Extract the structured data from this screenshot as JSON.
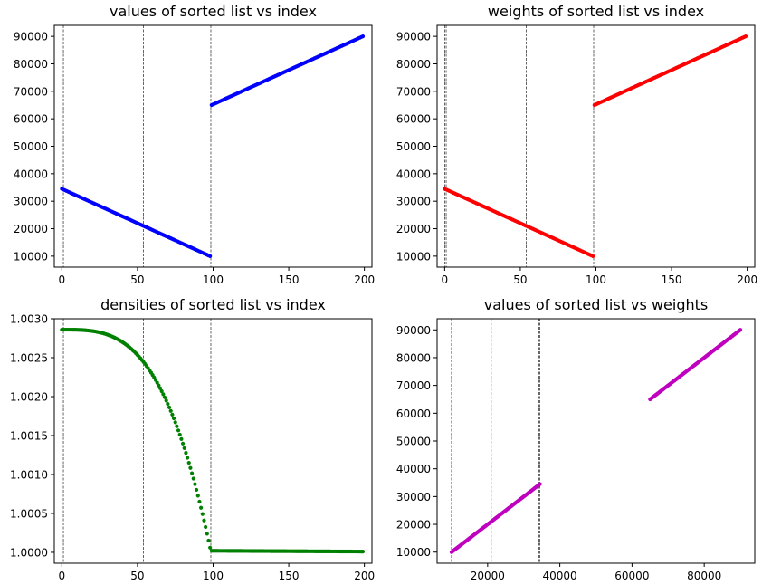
{
  "chart_data": [
    {
      "type": "scatter",
      "title": "values of sorted list vs index",
      "xlabel": "",
      "ylabel": "",
      "xlim": [
        -5,
        205
      ],
      "ylim": [
        6000,
        94000
      ],
      "xticks": [
        0,
        50,
        100,
        150,
        200
      ],
      "yticks": [
        10000,
        20000,
        30000,
        40000,
        50000,
        60000,
        70000,
        80000,
        90000
      ],
      "color": "#0000ff",
      "vlines": [
        0,
        1,
        54,
        98.5
      ],
      "segments": [
        {
          "x_start": 0,
          "x_end": 98,
          "y_start": 34500,
          "y_end": 10000,
          "n": 99,
          "shape": "linear"
        },
        {
          "x_start": 99,
          "x_end": 199,
          "y_start": 65000,
          "y_end": 90000,
          "n": 101,
          "shape": "linear"
        }
      ]
    },
    {
      "type": "scatter",
      "title": "weights of sorted list vs index",
      "xlabel": "",
      "ylabel": "",
      "xlim": [
        -5,
        205
      ],
      "ylim": [
        6000,
        94000
      ],
      "xticks": [
        0,
        50,
        100,
        150,
        200
      ],
      "yticks": [
        10000,
        20000,
        30000,
        40000,
        50000,
        60000,
        70000,
        80000,
        90000
      ],
      "color": "#ff0000",
      "vlines": [
        0,
        1,
        54,
        98.5
      ],
      "segments": [
        {
          "x_start": 0,
          "x_end": 98,
          "y_start": 34500,
          "y_end": 10000,
          "n": 99,
          "shape": "linear"
        },
        {
          "x_start": 99,
          "x_end": 199,
          "y_start": 65000,
          "y_end": 90000,
          "n": 101,
          "shape": "linear"
        }
      ]
    },
    {
      "type": "scatter",
      "title": "densities of sorted list vs index",
      "xlabel": "",
      "ylabel": "",
      "xlim": [
        -5,
        205
      ],
      "ylim": [
        0.99986,
        1.003
      ],
      "xticks": [
        0,
        50,
        100,
        150,
        200
      ],
      "yticks": [
        1.0,
        1.0005,
        1.001,
        1.0015,
        1.002,
        1.0025,
        1.003
      ],
      "ytick_labels": [
        "1.0000",
        "1.0005",
        "1.0010",
        "1.0015",
        "1.0020",
        "1.0025",
        "1.0030"
      ],
      "color": "#008000",
      "vlines": [
        0,
        1,
        54,
        98.5
      ],
      "segments": [
        {
          "x_start": 0,
          "x_end": 98,
          "y_start": 1.00286,
          "y_end": 1.00006,
          "n": 99,
          "shape": "concave"
        },
        {
          "x_start": 99,
          "x_end": 199,
          "y_start": 1.00002,
          "y_end": 1.00001,
          "n": 101,
          "shape": "linear"
        }
      ]
    },
    {
      "type": "scatter",
      "title": "values of sorted list vs weights",
      "xlabel": "",
      "ylabel": "",
      "xlim": [
        6000,
        94000
      ],
      "ylim": [
        6000,
        94000
      ],
      "xticks": [
        20000,
        40000,
        60000,
        80000
      ],
      "yticks": [
        10000,
        20000,
        30000,
        40000,
        50000,
        60000,
        70000,
        80000,
        90000
      ],
      "color": "#bf00bf",
      "vlines": [
        10000,
        21000,
        34200,
        34500
      ],
      "segments": [
        {
          "x_start": 10000,
          "x_end": 34500,
          "y_start": 10000,
          "y_end": 34500,
          "n": 99,
          "shape": "linear"
        },
        {
          "x_start": 65000,
          "x_end": 90000,
          "y_start": 65000,
          "y_end": 90000,
          "n": 101,
          "shape": "linear"
        }
      ]
    }
  ]
}
